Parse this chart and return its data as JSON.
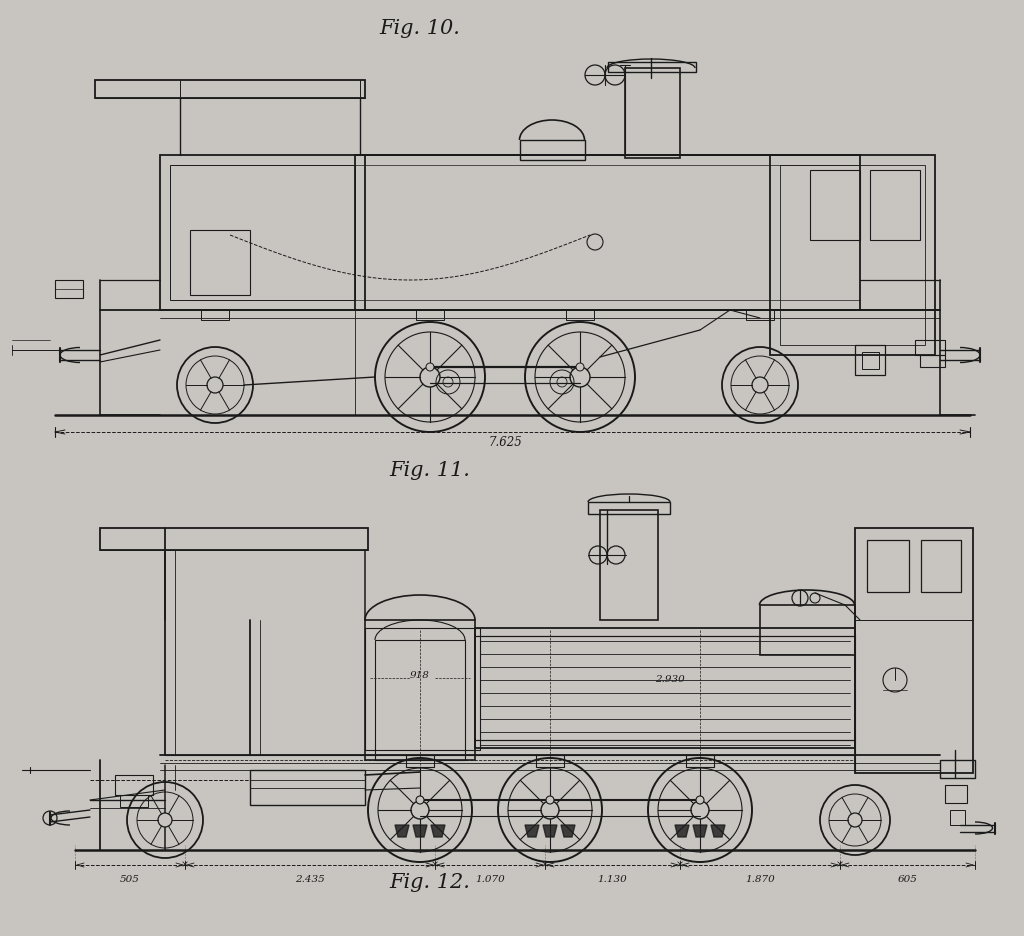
{
  "bg_color": "#c8c5c0",
  "lc": "#1a1a1a",
  "title_fig10": "Fig. 10.",
  "title_fig11": "Fig. 11.",
  "title_fig12": "Fig. 12.",
  "dim_top": "7.625",
  "dim_bot": [
    "505",
    "2.435",
    "1.070",
    "1.130",
    "1.870",
    "605"
  ],
  "label_boiler_len": "2.930",
  "label_boiler_diam": "918"
}
